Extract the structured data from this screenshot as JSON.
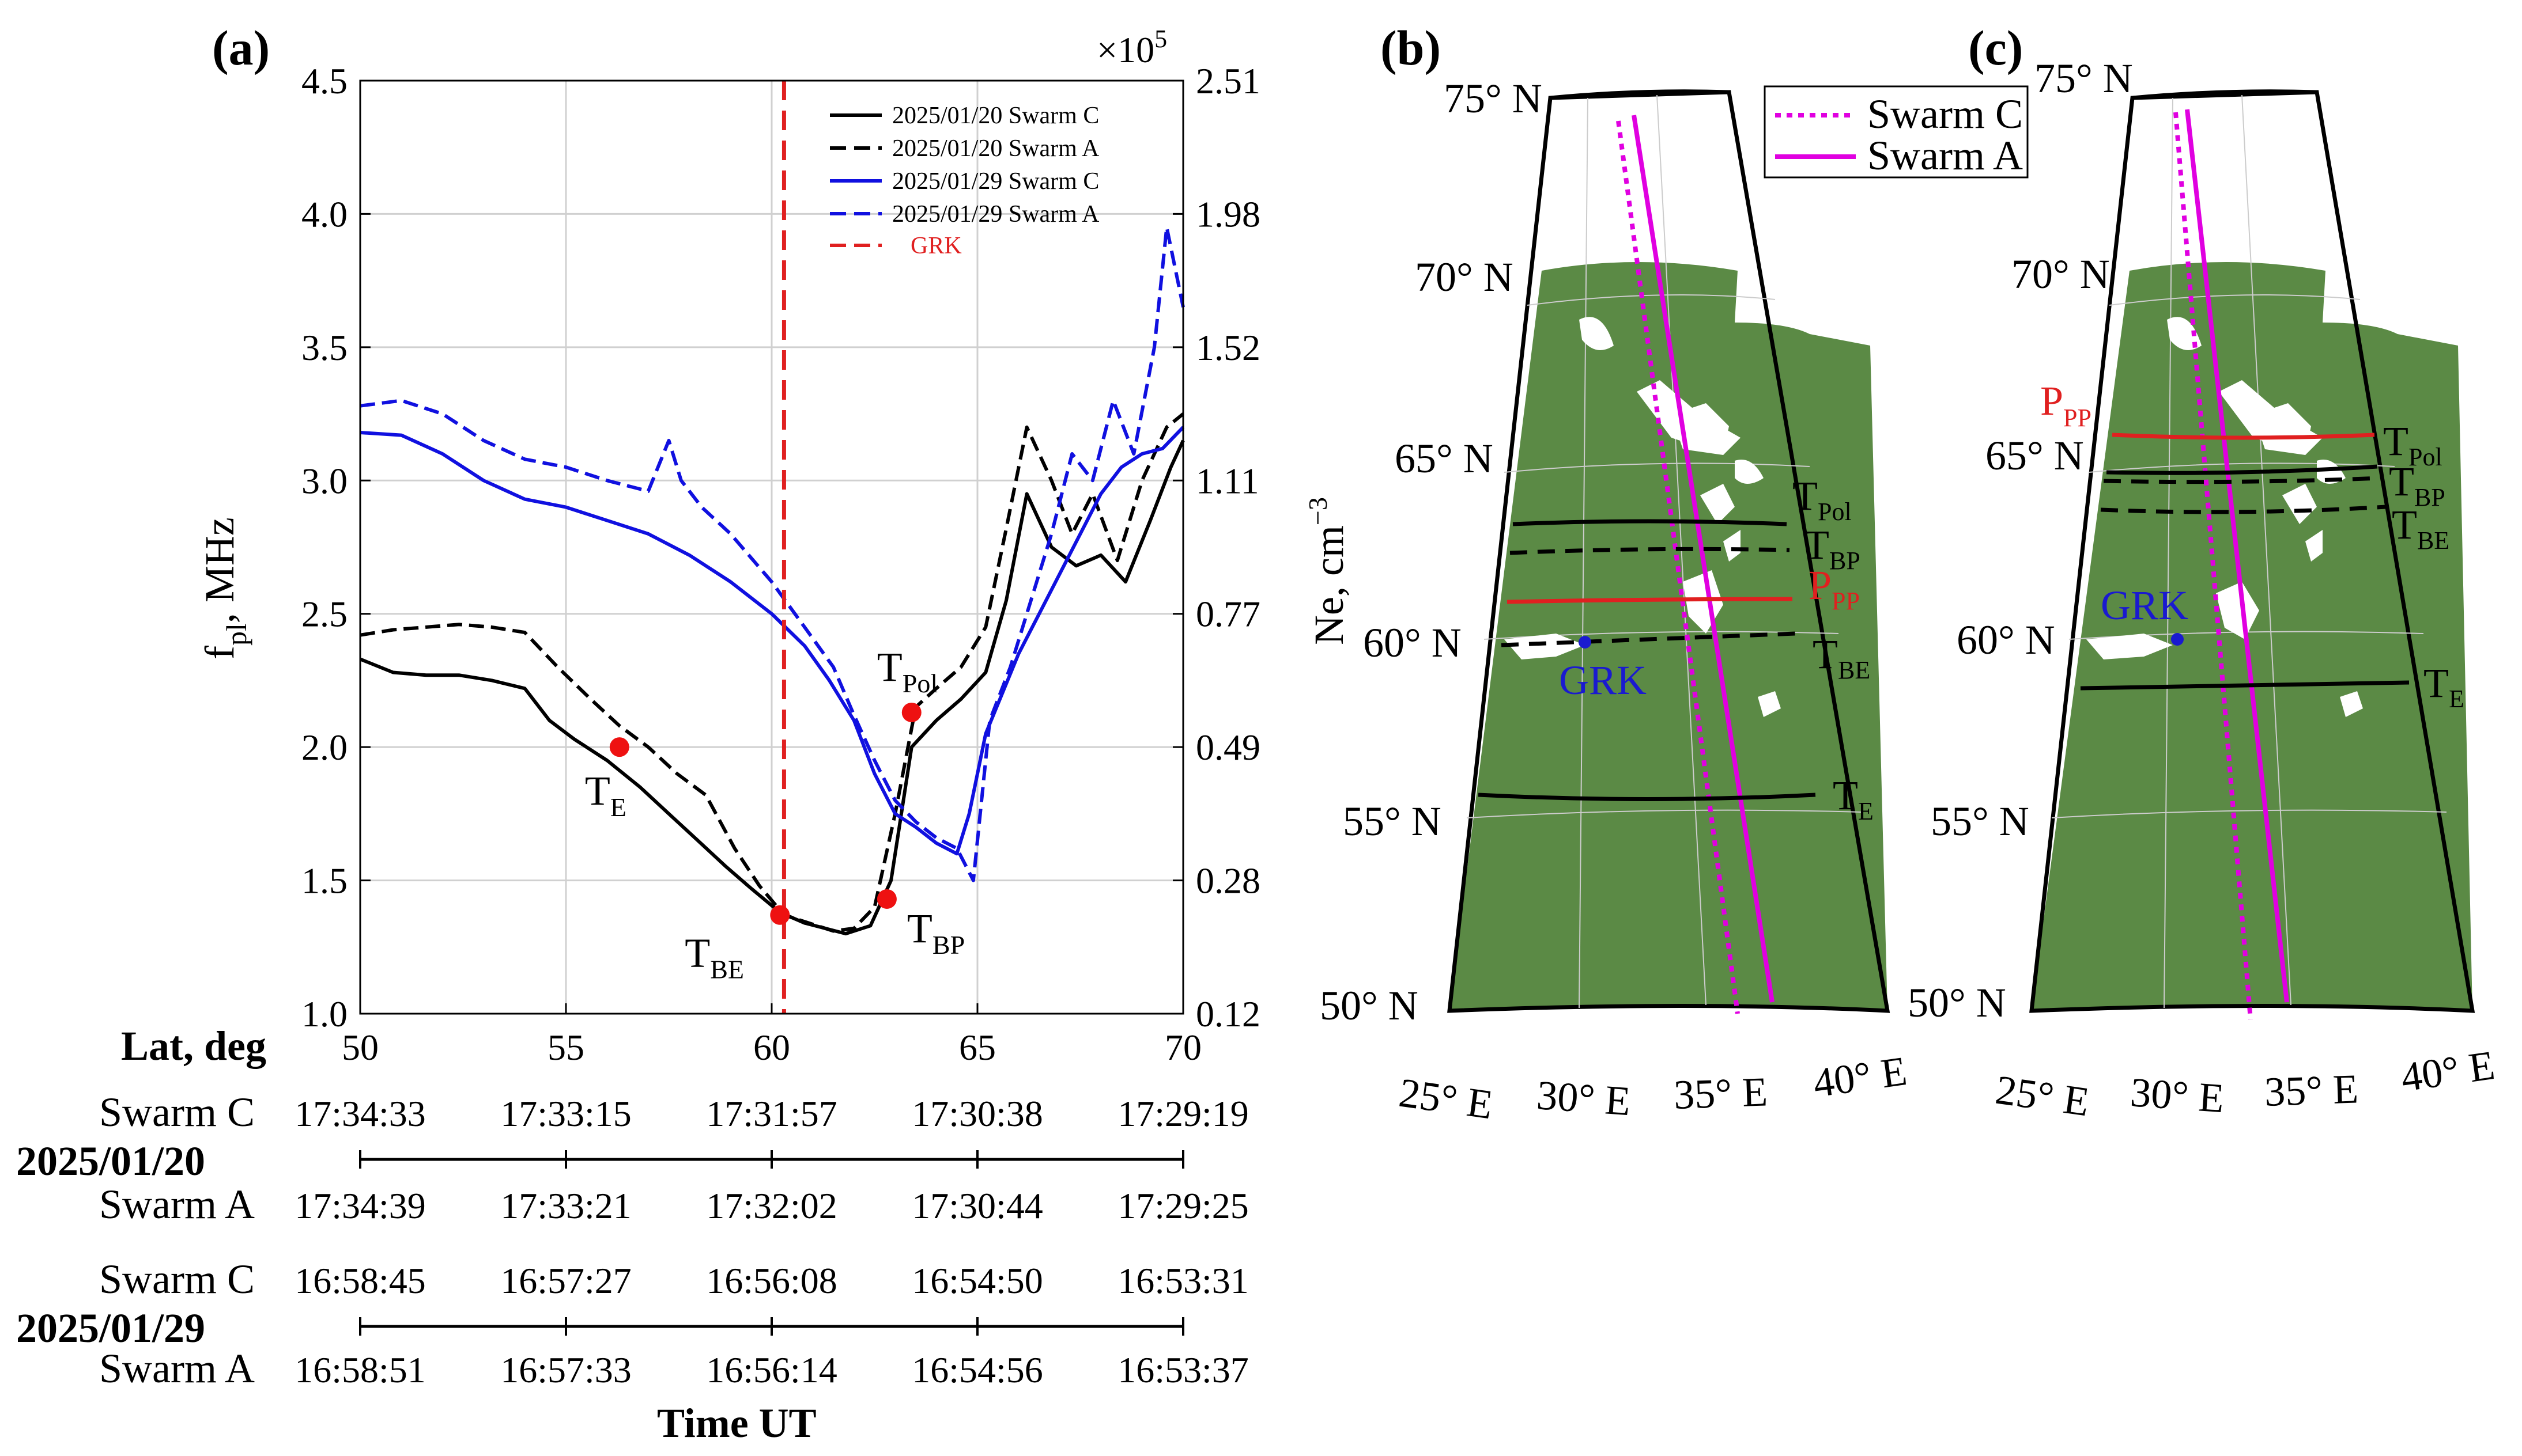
{
  "panel_labels": {
    "a": "(a)",
    "b": "(b)",
    "c": "(c)"
  },
  "chart_data": [
    {
      "type": "line",
      "panel": "(a)",
      "xlabel": "Time UT",
      "ylabel": "f",
      "ylabel_sub": "pl",
      "ylabel_suffix": ", MHz",
      "y2label": "Ne, cm",
      "y2label_sup": "−3",
      "y2_multiplier": "×10",
      "y2_multiplier_exp": "5",
      "xlim": [
        50,
        70
      ],
      "ylim": [
        1.0,
        4.5
      ],
      "grid": true,
      "xticks": [
        "50",
        "55",
        "60",
        "65",
        "70"
      ],
      "yticks": [
        "1.0",
        "1.5",
        "2.0",
        "2.5",
        "3.0",
        "3.5",
        "4.0",
        "4.5"
      ],
      "y2ticks": [
        "0.12",
        "0.28",
        "0.49",
        "0.77",
        "1.11",
        "1.52",
        "1.98",
        "2.51"
      ],
      "legend_position": "top-right",
      "series": [
        {
          "name": "2025/01/20 Swarm C",
          "color": "#000000",
          "dash": "solid",
          "x": [
            50.0,
            50.8,
            51.6,
            52.4,
            53.2,
            54.0,
            54.6,
            55.2,
            56.0,
            56.8,
            57.5,
            58.2,
            58.9,
            59.5,
            60.2,
            60.8,
            61.3,
            61.8,
            62.4,
            62.9,
            63.4,
            64.0,
            64.6,
            65.2,
            65.7,
            66.2,
            66.8,
            67.4,
            68.0,
            68.6,
            69.2,
            69.7,
            70.0
          ],
          "values": [
            2.33,
            2.28,
            2.27,
            2.27,
            2.25,
            2.22,
            2.1,
            2.03,
            1.95,
            1.85,
            1.75,
            1.65,
            1.55,
            1.47,
            1.38,
            1.34,
            1.32,
            1.3,
            1.33,
            1.5,
            2.0,
            2.1,
            2.18,
            2.28,
            2.55,
            2.95,
            2.75,
            2.68,
            2.72,
            2.62,
            2.85,
            3.05,
            3.15
          ]
        },
        {
          "name": "2025/01/20 Swarm A",
          "color": "#000000",
          "dash": "dashed",
          "x": [
            50.0,
            50.8,
            51.6,
            52.4,
            53.2,
            54.0,
            54.8,
            55.6,
            56.3,
            57.0,
            57.7,
            58.4,
            59.1,
            59.7,
            60.3,
            60.9,
            61.5,
            62.0,
            62.5,
            63.0,
            63.5,
            64.0,
            64.6,
            65.2,
            65.7,
            66.2,
            66.8,
            67.3,
            67.8,
            68.4,
            69.0,
            69.6,
            70.0
          ],
          "values": [
            2.42,
            2.44,
            2.45,
            2.46,
            2.45,
            2.43,
            2.3,
            2.18,
            2.08,
            2.0,
            1.9,
            1.82,
            1.62,
            1.48,
            1.37,
            1.34,
            1.31,
            1.32,
            1.4,
            1.75,
            2.15,
            2.22,
            2.3,
            2.45,
            2.82,
            3.2,
            3.0,
            2.8,
            2.95,
            2.7,
            3.0,
            3.2,
            3.25
          ]
        },
        {
          "name": "2025/01/29 Swarm C",
          "color": "#1010e0",
          "dash": "solid",
          "x": [
            50.0,
            51.0,
            52.0,
            53.0,
            54.0,
            55.0,
            56.0,
            57.0,
            58.0,
            59.0,
            60.0,
            60.8,
            61.4,
            62.0,
            62.5,
            63.0,
            63.5,
            64.0,
            64.5,
            64.8,
            65.2,
            65.6,
            66.0,
            66.5,
            67.0,
            67.5,
            68.0,
            68.5,
            69.0,
            69.5,
            70.0
          ],
          "values": [
            3.18,
            3.17,
            3.1,
            3.0,
            2.93,
            2.9,
            2.85,
            2.8,
            2.72,
            2.62,
            2.5,
            2.38,
            2.25,
            2.1,
            1.9,
            1.75,
            1.7,
            1.64,
            1.6,
            1.75,
            2.05,
            2.2,
            2.35,
            2.5,
            2.65,
            2.8,
            2.95,
            3.05,
            3.1,
            3.12,
            3.2
          ]
        },
        {
          "name": "2025/01/29 Swarm A",
          "color": "#1010e0",
          "dash": "dashed",
          "x": [
            50.0,
            51.0,
            52.0,
            53.0,
            54.0,
            55.0,
            56.0,
            57.0,
            57.5,
            57.8,
            58.3,
            59.0,
            60.0,
            60.8,
            61.5,
            62.0,
            62.5,
            63.0,
            63.5,
            64.0,
            64.5,
            64.9,
            65.3,
            65.8,
            66.3,
            66.8,
            67.3,
            67.8,
            68.3,
            68.8,
            69.3,
            69.6,
            70.0
          ],
          "values": [
            3.28,
            3.3,
            3.25,
            3.15,
            3.08,
            3.05,
            3.0,
            2.96,
            3.15,
            3.0,
            2.9,
            2.8,
            2.62,
            2.45,
            2.3,
            2.12,
            1.95,
            1.8,
            1.72,
            1.66,
            1.62,
            1.5,
            2.1,
            2.3,
            2.55,
            2.8,
            3.1,
            3.0,
            3.3,
            3.1,
            3.5,
            3.95,
            3.65
          ]
        }
      ],
      "vline": {
        "name": "GRK",
        "x": 60.3,
        "color": "#e02020",
        "dash": "dashed"
      },
      "markers": [
        {
          "label": "T",
          "sub": "E",
          "x": 56.3,
          "y": 2.0
        },
        {
          "label": "T",
          "sub": "BE",
          "x": 60.2,
          "y": 1.37
        },
        {
          "label": "T",
          "sub": "BP",
          "x": 62.8,
          "y": 1.43
        },
        {
          "label": "T",
          "sub": "Pol",
          "x": 63.4,
          "y": 2.13
        }
      ],
      "time_table": {
        "lat_label": "Lat, deg",
        "rows": [
          {
            "date": "",
            "sat": "Swarm C",
            "times": [
              "17:34:33",
              "17:33:15",
              "17:31:57",
              "17:30:38",
              "17:29:19"
            ]
          },
          {
            "date": "2025/01/20",
            "sat": "",
            "times": []
          },
          {
            "date": "",
            "sat": "Swarm A",
            "times": [
              "17:34:39",
              "17:33:21",
              "17:32:02",
              "17:30:44",
              "17:29:25"
            ]
          },
          {
            "date": "",
            "sat": "Swarm C",
            "times": [
              "16:58:45",
              "16:57:27",
              "16:56:08",
              "16:54:50",
              "16:53:31"
            ]
          },
          {
            "date": "2025/01/29",
            "sat": "",
            "times": []
          },
          {
            "date": "",
            "sat": "Swarm A",
            "times": [
              "16:58:51",
              "16:57:33",
              "16:56:14",
              "16:54:56",
              "16:53:37"
            ]
          }
        ]
      }
    },
    {
      "type": "map",
      "panel": "(b)",
      "lat_labels": [
        "75° N",
        "70° N",
        "65° N",
        "60° N",
        "55° N",
        "50° N"
      ],
      "lon_labels": [
        "25° E",
        "30° E",
        "35° E",
        "40° E"
      ],
      "legend": [
        {
          "name": "Swarm C",
          "color": "#e000e0",
          "dash": "dotted"
        },
        {
          "name": "Swarm A",
          "color": "#e000e0",
          "dash": "solid"
        }
      ],
      "station": {
        "name": "GRK",
        "color": "#1a1ad0"
      },
      "boundaries": [
        {
          "label": "T",
          "sub": "Pol",
          "color": "#000000",
          "dash": "solid"
        },
        {
          "label": "T",
          "sub": "BP",
          "color": "#000000",
          "dash": "dashed"
        },
        {
          "label": "P",
          "sub": "PP",
          "color": "#e02020",
          "dash": "solid"
        },
        {
          "label": "T",
          "sub": "BE",
          "color": "#000000",
          "dash": "dashed"
        },
        {
          "label": "T",
          "sub": "E",
          "color": "#000000",
          "dash": "solid"
        }
      ]
    },
    {
      "type": "map",
      "panel": "(c)",
      "lat_labels": [
        "75° N",
        "70° N",
        "65° N",
        "60° N",
        "55° N",
        "50° N"
      ],
      "lon_labels": [
        "25° E",
        "30° E",
        "35° E",
        "40° E"
      ],
      "station": {
        "name": "GRK",
        "color": "#1a1ad0"
      },
      "boundaries": [
        {
          "label": "P",
          "sub": "PP",
          "color": "#e02020",
          "dash": "solid"
        },
        {
          "label": "T",
          "sub": "Pol",
          "color": "#000000",
          "dash": "solid"
        },
        {
          "label": "T",
          "sub": "BP",
          "color": "#000000",
          "dash": "dashed"
        },
        {
          "label": "T",
          "sub": "BE",
          "color": "#000000",
          "dash": "dashed"
        },
        {
          "label": "T",
          "sub": "E",
          "color": "#000000",
          "dash": "solid"
        }
      ]
    }
  ]
}
